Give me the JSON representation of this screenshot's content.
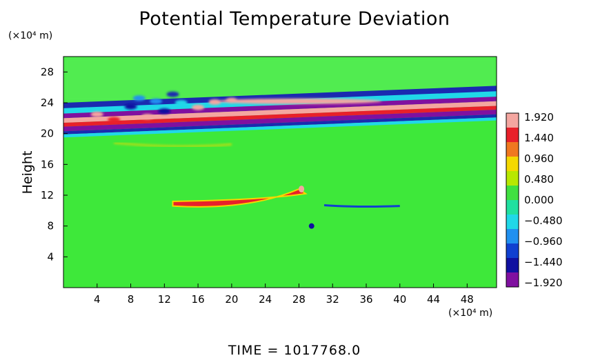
{
  "chart_data": {
    "type": "heatmap",
    "title": "Potential Temperature Deviation",
    "ylabel": "Height",
    "x_unit_label": "(×10⁴ m)",
    "y_unit_label": "(×10⁴ m)",
    "xlim": [
      0,
      51.5
    ],
    "ylim": [
      0,
      30
    ],
    "x_ticks": [
      4,
      8,
      12,
      16,
      20,
      24,
      28,
      32,
      36,
      40,
      44,
      48
    ],
    "y_ticks": [
      4,
      8,
      12,
      16,
      20,
      24,
      28
    ],
    "colorbar": {
      "levels": [
        1.92,
        1.44,
        0.96,
        0.48,
        0.0,
        -0.48,
        -0.96,
        -1.44,
        -1.92
      ],
      "level_labels": [
        "1.920",
        "1.440",
        "0.960",
        "0.480",
        "0.000",
        "−0.480",
        "−0.960",
        "−1.440",
        "−1.920"
      ],
      "colors_top_to_bottom": [
        "#f4a6a0",
        "#e8202a",
        "#f07820",
        "#f4d800",
        "#b8e800",
        "#40e040",
        "#20e0a0",
        "#20d8e8",
        "#2090f0",
        "#1040d0",
        "#1010a0",
        "#8010a0"
      ]
    },
    "features": [
      {
        "name": "upper wave band",
        "x_range": [
          0,
          51.5
        ],
        "y_range": [
          19.5,
          23.5
        ],
        "value": "alternating -1.92 / 1.92"
      },
      {
        "name": "warm anomaly",
        "x_range": [
          13,
          29
        ],
        "y_range": [
          10,
          13
        ],
        "value": 1.2
      },
      {
        "name": "cold anomaly",
        "x_range": [
          31,
          40
        ],
        "y_range": [
          10.4,
          10.8
        ],
        "value": -1.4
      },
      {
        "name": "cold spot",
        "x": 29.5,
        "y": 8,
        "value": -1.6
      }
    ],
    "background_value": 0.2
  },
  "footer": {
    "time_text": "TIME  =  1017768.0"
  }
}
